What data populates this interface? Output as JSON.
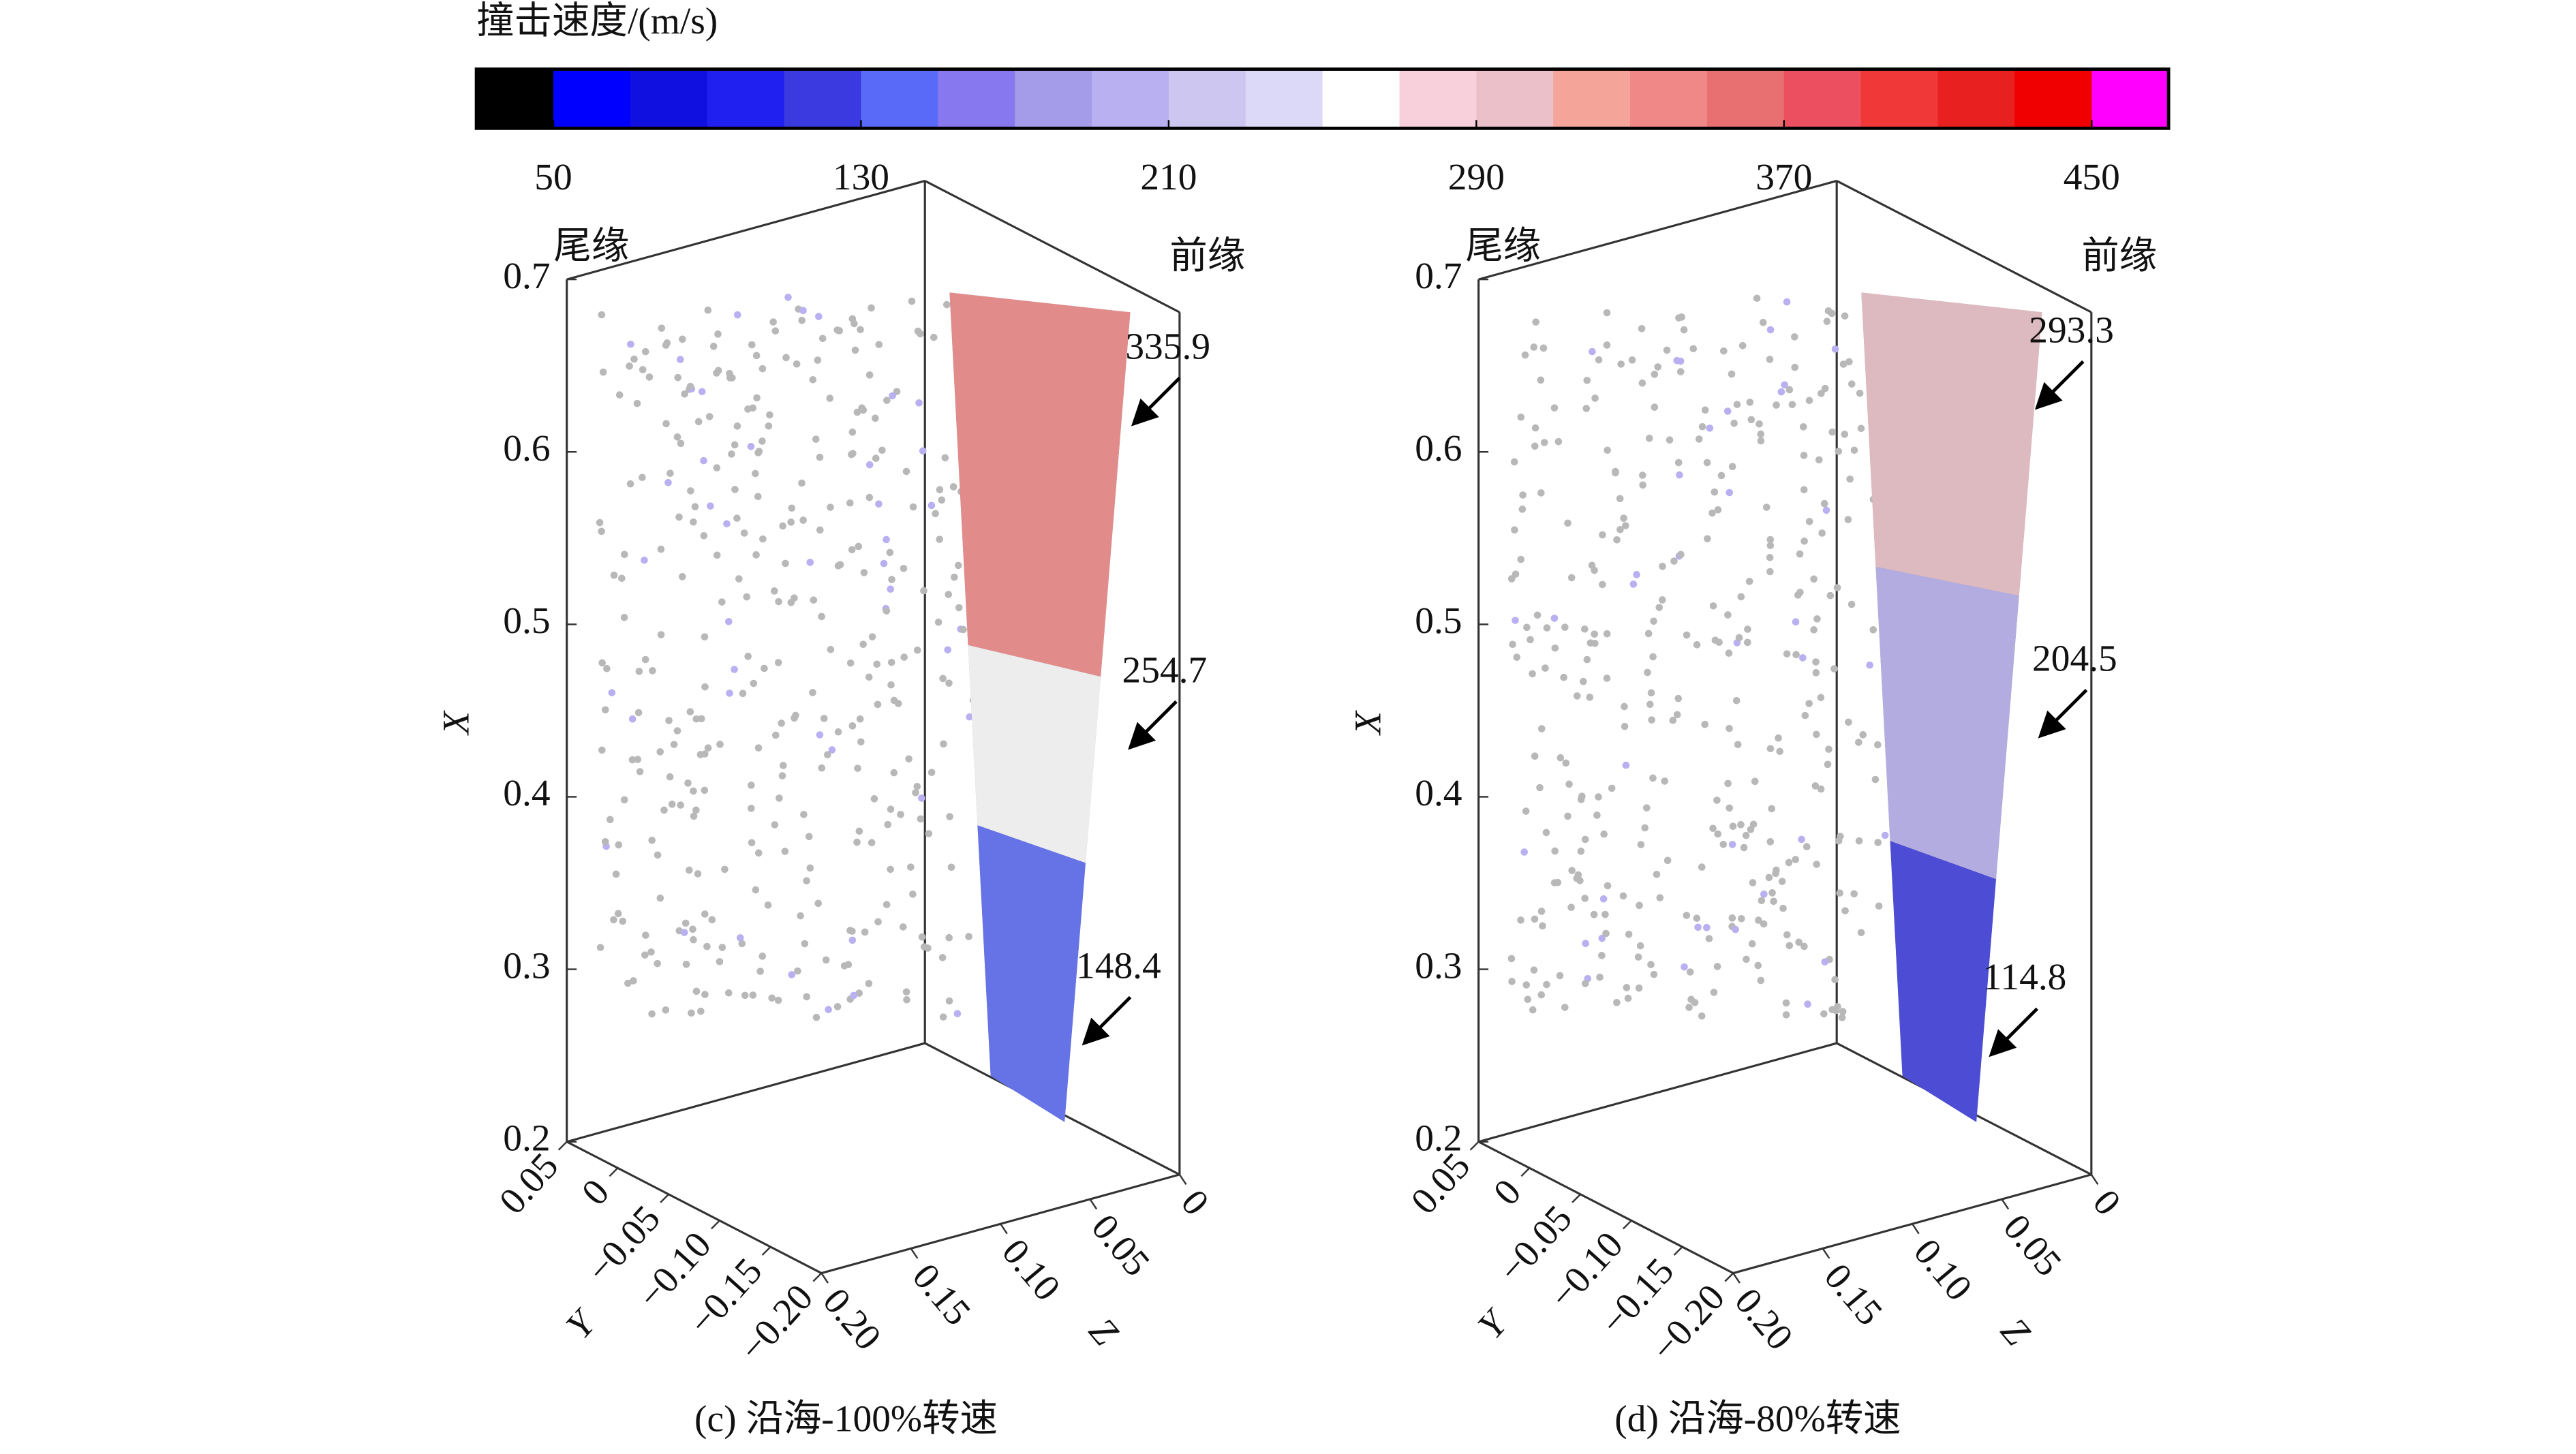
{
  "chart_data": [
    {
      "type": "colorbar",
      "title": "撞击速度/(m/s)",
      "lim": [
        30,
        470
      ],
      "ticks": [
        50,
        130,
        210,
        290,
        370,
        450
      ],
      "colors": [
        "#000000",
        "#0000ff",
        "#1010e0",
        "#2020f0",
        "#3a3ae0",
        "#5a6af8",
        "#8878f0",
        "#a49ce8",
        "#b8b0f0",
        "#ccc6f0",
        "#dcd8f8",
        "#ffffff",
        "#f8d0dc",
        "#ecc0c8",
        "#f4a498",
        "#f08888",
        "#e87070",
        "#ec5060",
        "#f03838",
        "#e82020",
        "#f00000",
        "#ff00ff"
      ]
    },
    {
      "type": "scatter3d",
      "title": "(c) 沿海-100%转速",
      "xlabel": "X",
      "ylabel": "Y",
      "zlabel": "Z",
      "xlim": [
        0.2,
        0.7
      ],
      "xticks": [
        0.2,
        0.3,
        0.4,
        0.5,
        0.6,
        0.7
      ],
      "ylim": [
        -0.2,
        0.05
      ],
      "yticks": [
        0.05,
        0,
        {
          "value": -0.05,
          "label": "−0.05"
        },
        {
          "value": -0.1,
          "label": "−0.10"
        },
        {
          "value": -0.15,
          "label": "−0.15"
        },
        {
          "value": -0.2,
          "label": "−0.20"
        }
      ],
      "zlim": [
        0,
        0.2
      ],
      "zticks": [
        0,
        0.05,
        {
          "value": 0.1,
          "label": "0.10"
        },
        0.15,
        {
          "value": 0.2,
          "label": "0.20"
        }
      ],
      "edge_labels": [
        "尾缘",
        "前缘"
      ],
      "annotations": [
        335.9,
        254.7,
        148.4
      ]
    },
    {
      "type": "scatter3d",
      "title": "(d) 沿海-80%转速",
      "xlabel": "X",
      "ylabel": "Y",
      "zlabel": "Z",
      "xlim": [
        0.2,
        0.7
      ],
      "xticks": [
        0.2,
        0.3,
        0.4,
        0.5,
        0.6,
        0.7
      ],
      "ylim": [
        -0.2,
        0.05
      ],
      "yticks": [
        0.05,
        0,
        {
          "value": -0.05,
          "label": "−0.05"
        },
        {
          "value": -0.1,
          "label": "−0.10"
        },
        {
          "value": -0.15,
          "label": "−0.15"
        },
        {
          "value": -0.2,
          "label": "−0.20"
        }
      ],
      "zlim": [
        0,
        0.2
      ],
      "zticks": [
        0,
        0.05,
        {
          "value": 0.1,
          "label": "0.10"
        },
        0.15,
        {
          "value": 0.2,
          "label": "0.20"
        }
      ],
      "edge_labels": [
        "尾缘",
        "前缘"
      ],
      "annotations": [
        293.3,
        204.5,
        114.8
      ]
    }
  ]
}
